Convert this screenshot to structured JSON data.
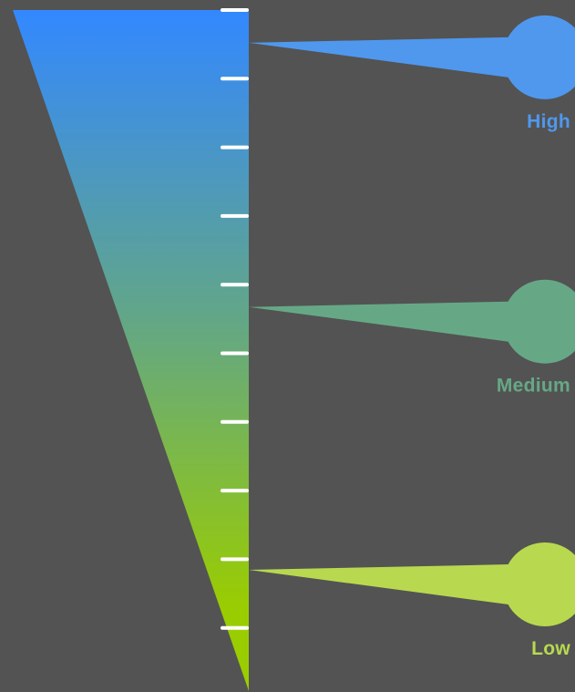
{
  "colors": {
    "background": "#535353",
    "gradient_top": "#3388ff",
    "gradient_middle": "#62a688",
    "gradient_bottom": "#9acd00",
    "tick": "#ffffff"
  },
  "scale": {
    "tick_count": 10
  },
  "levels": [
    {
      "label": "High",
      "color": "#4f98ee",
      "position": 0.048
    },
    {
      "label": "Medium",
      "color": "#66a886",
      "position": 0.436
    },
    {
      "label": "Low",
      "color": "#b8d94f",
      "position": 0.822
    }
  ]
}
